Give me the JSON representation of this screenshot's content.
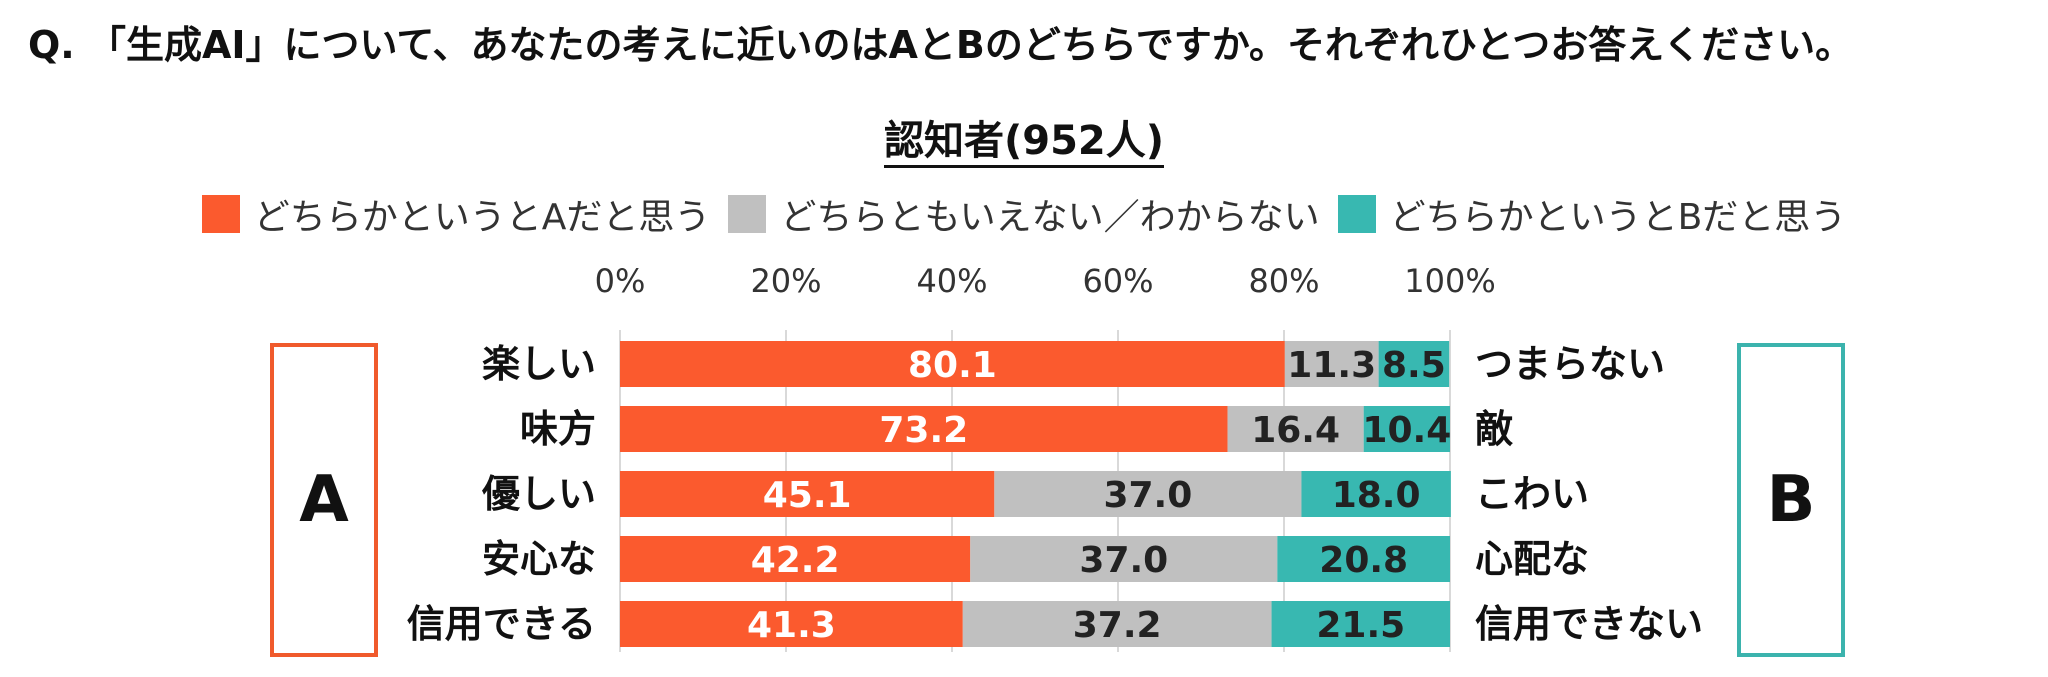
{
  "question": "Q. 「生成AI」について、あなたの考えに近いのはAとBのどちらですか。それぞれひとつお答えください。",
  "box_a_label": "A",
  "box_b_label": "B",
  "colors": {
    "a": "#fb5a2e",
    "neutral": "#c0c0c0",
    "b": "#38b8b1",
    "box_a_border": "#f05a2c",
    "box_b_border": "#3bb3ad"
  },
  "chart_data": {
    "type": "bar",
    "orientation": "horizontal",
    "stacked": true,
    "title": "認知者(952人)",
    "legend": {
      "placement": "top",
      "entries": [
        "どちらかというとAだと思う",
        "どちらともいえない／わからない",
        "どちらかというとBだと思う"
      ]
    },
    "x_ticks": [
      "0%",
      "20%",
      "40%",
      "60%",
      "80%",
      "100%"
    ],
    "xlim": [
      0,
      100
    ],
    "grid": true,
    "categories_a": [
      "楽しい",
      "味方",
      "優しい",
      "安心な",
      "信用できる"
    ],
    "categories_b": [
      "つまらない",
      "敵",
      "こわい",
      "心配な",
      "信用できない"
    ],
    "series": [
      {
        "name": "どちらかというとAだと思う",
        "values": [
          80.1,
          73.2,
          45.1,
          42.2,
          41.3
        ],
        "labels": [
          "80.1",
          "73.2",
          "45.1",
          "42.2",
          "41.3"
        ]
      },
      {
        "name": "どちらともいえない／わからない",
        "values": [
          11.3,
          16.4,
          37.0,
          37.0,
          37.2
        ],
        "labels": [
          "11.3",
          "16.4",
          "37.0",
          "37.0",
          "37.2"
        ]
      },
      {
        "name": "どちらかというとBだと思う",
        "values": [
          8.5,
          10.4,
          18.0,
          20.8,
          21.5
        ],
        "labels": [
          "8.5",
          "10.4",
          "18.0",
          "20.8",
          "21.5"
        ]
      }
    ]
  }
}
